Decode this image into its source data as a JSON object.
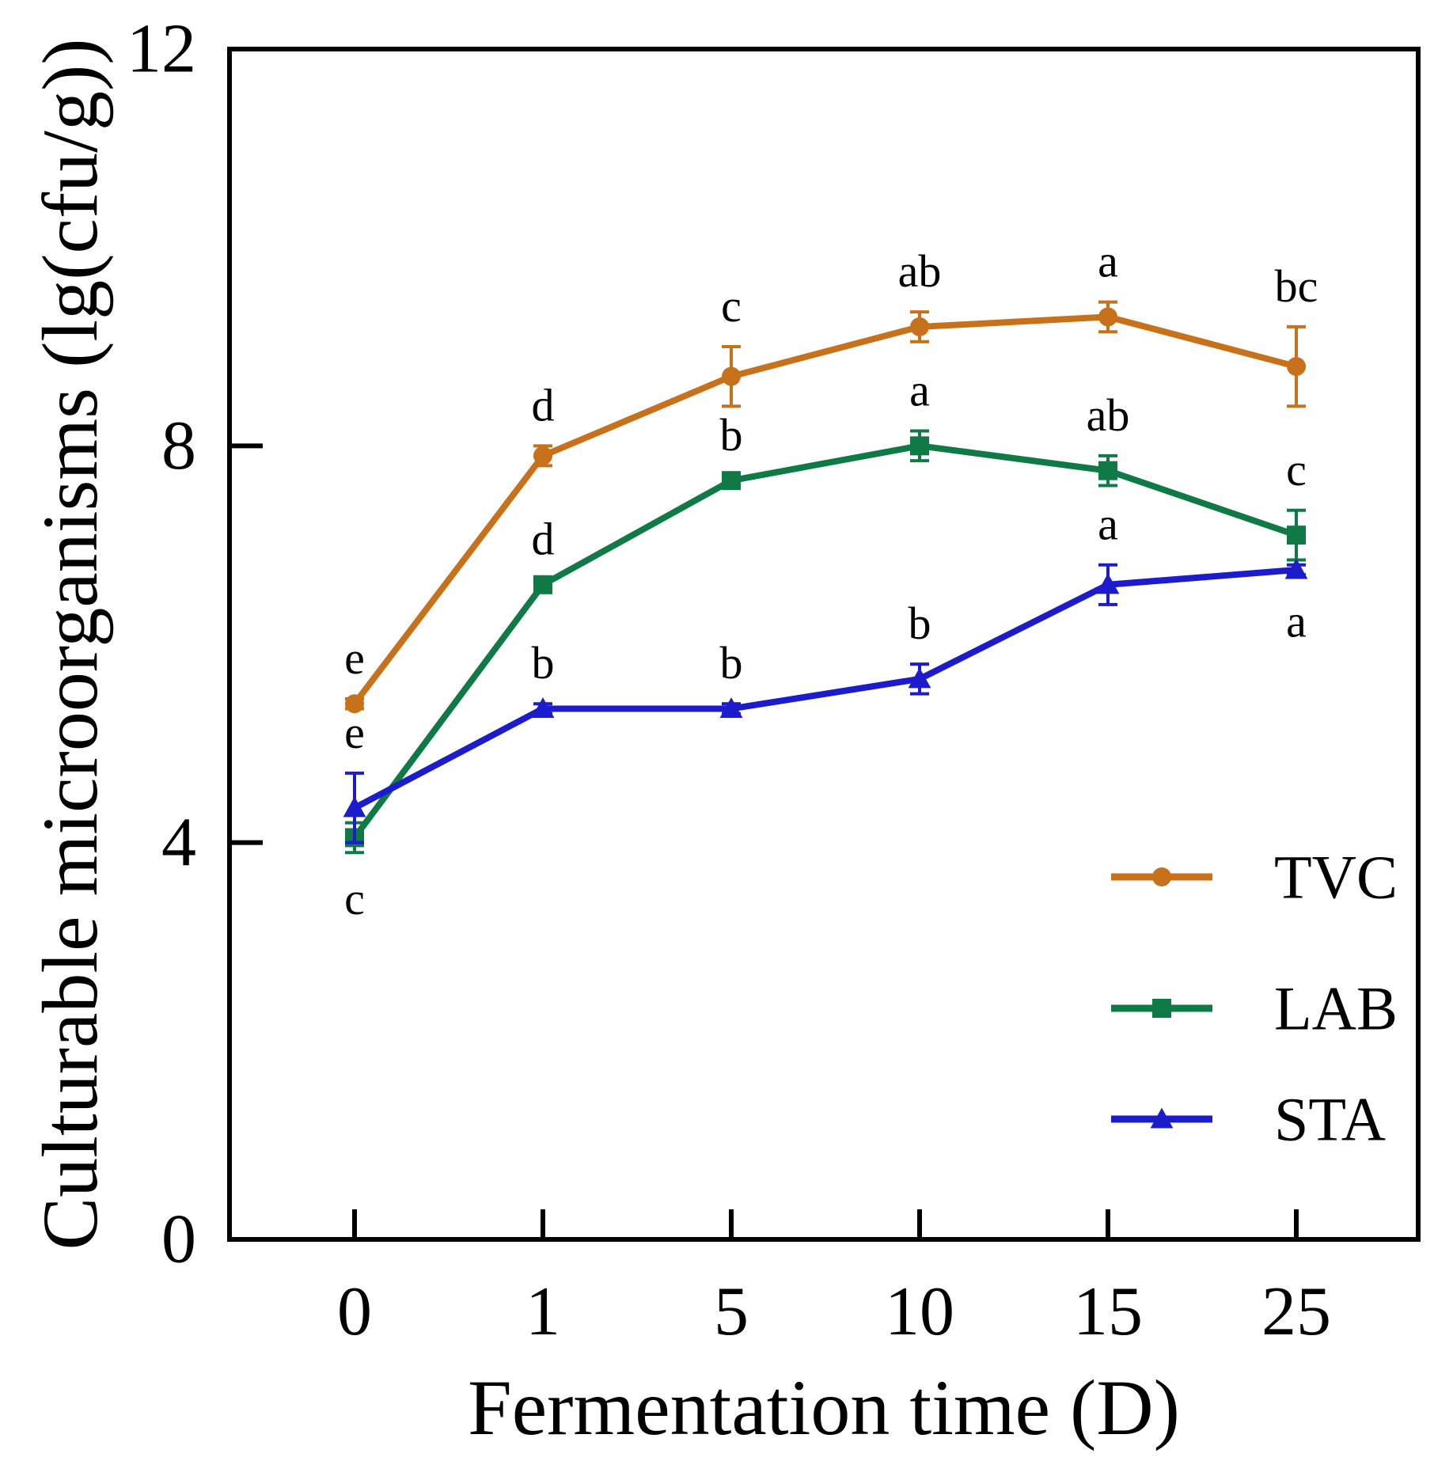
{
  "chart_data": {
    "type": "line",
    "title": "",
    "xlabel": "Fermentation time (D)",
    "ylabel": "Culturable microorganisms (lg(cfu/g))",
    "categories": [
      "0",
      "1",
      "5",
      "10",
      "15",
      "25"
    ],
    "ylim": [
      0,
      12
    ],
    "yticks": [
      "0",
      "4",
      "8",
      "12"
    ],
    "grid": false,
    "legend_position": "bottom-right",
    "series": [
      {
        "name": "TVC",
        "color": "#c8711b",
        "marker": "circle",
        "values": [
          5.4,
          7.9,
          8.7,
          9.2,
          9.3,
          8.8
        ],
        "errors": [
          0.05,
          0.1,
          0.3,
          0.15,
          0.15,
          0.4
        ],
        "letters": [
          "e",
          "d",
          "c",
          "ab",
          "a",
          "bc"
        ],
        "letter_side": [
          "above",
          "above",
          "above",
          "above",
          "above",
          "above"
        ]
      },
      {
        "name": "LAB",
        "color": "#107a46",
        "marker": "square",
        "values": [
          4.05,
          6.6,
          7.65,
          8.0,
          7.75,
          7.1
        ],
        "errors": [
          0.15,
          0.05,
          0.05,
          0.15,
          0.15,
          0.25
        ],
        "letters": [
          "c",
          "d",
          "b",
          "a",
          "ab",
          "c"
        ],
        "letter_side": [
          "below",
          "above",
          "above",
          "above",
          "above",
          "above"
        ]
      },
      {
        "name": "STA",
        "color": "#1c1ccc",
        "marker": "triangle",
        "values": [
          4.35,
          5.35,
          5.35,
          5.65,
          6.6,
          6.75
        ],
        "errors": [
          0.35,
          0.05,
          0.05,
          0.15,
          0.2,
          0.05
        ],
        "letters": [
          "e",
          "b",
          "b",
          "b",
          "a",
          "a"
        ],
        "letter_side": [
          "above",
          "above",
          "above",
          "above",
          "above",
          "below"
        ]
      }
    ]
  }
}
